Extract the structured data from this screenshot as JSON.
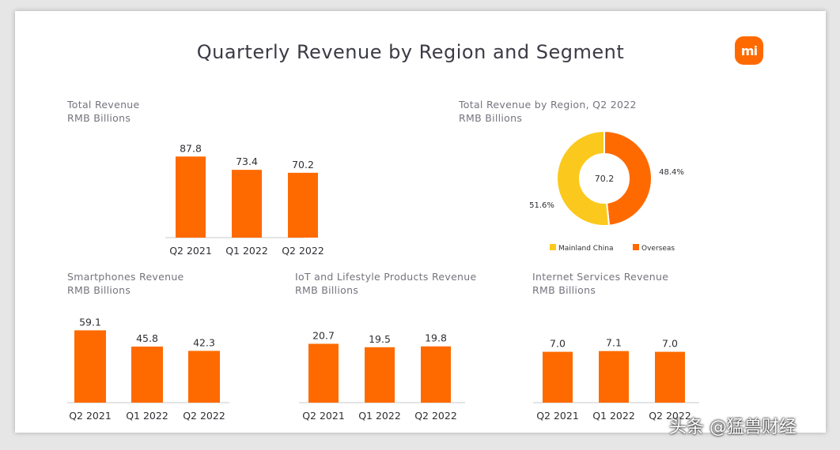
{
  "page_title": "Quarterly Revenue by Region and Segment",
  "logo_text": "mi",
  "watermark": "头条 @猛兽财经",
  "colors": {
    "bar": "#ff6a00",
    "mainland": "#fbc91d",
    "overseas": "#ff6a00",
    "title": "#3b3b45",
    "label": "#74747e"
  },
  "chart_data": [
    {
      "id": "total",
      "type": "bar",
      "title": "Total Revenue",
      "subtitle": "RMB Billions",
      "categories": [
        "Q2 2021",
        "Q1 2022",
        "Q2 2022"
      ],
      "values": [
        87.8,
        73.4,
        70.2
      ]
    },
    {
      "id": "region",
      "type": "pie",
      "title": "Total Revenue by Region, Q2 2022",
      "subtitle": "RMB Billions",
      "center_label": "70.2",
      "slices": [
        {
          "name": "Mainland China",
          "value": 51.6,
          "label": "51.6%"
        },
        {
          "name": "Overseas",
          "value": 48.4,
          "label": "48.4%"
        }
      ]
    },
    {
      "id": "smartphones",
      "type": "bar",
      "title": "Smartphones Revenue",
      "subtitle": "RMB Billions",
      "categories": [
        "Q2 2021",
        "Q1 2022",
        "Q2 2022"
      ],
      "values": [
        59.1,
        45.8,
        42.3
      ]
    },
    {
      "id": "iot",
      "type": "bar",
      "title": "IoT and Lifestyle Products Revenue",
      "subtitle": "RMB Billions",
      "categories": [
        "Q2 2021",
        "Q1 2022",
        "Q2 2022"
      ],
      "values": [
        20.7,
        19.5,
        19.8
      ]
    },
    {
      "id": "internet",
      "type": "bar",
      "title": "Internet Services Revenue",
      "subtitle": "RMB Billions",
      "categories": [
        "Q2 2021",
        "Q1 2022",
        "Q2 2022"
      ],
      "values": [
        7.0,
        7.1,
        7.0
      ]
    }
  ]
}
